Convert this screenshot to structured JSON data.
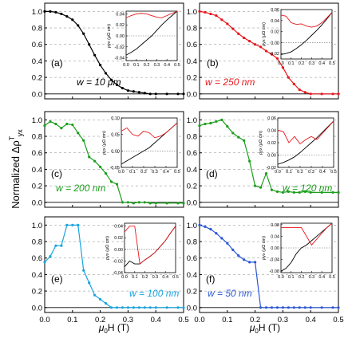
{
  "figure": {
    "y_axis_label": "Normalized Δρ",
    "y_axis_sup": "T",
    "y_axis_sub": "yx",
    "x_axis_label": "μ0H (T)",
    "x_axis_main": "μ",
    "x_axis_sub": "0",
    "x_axis_rest": "H (T)"
  },
  "chart_data": [
    {
      "type": "line",
      "panel": "(a)",
      "legend": "w = 10 μm",
      "color": "#000000",
      "xlim": [
        0,
        0.5
      ],
      "ylim": [
        -0.06,
        1.1
      ],
      "xticks": [
        "0.0",
        "0.1",
        "0.2",
        "0.3",
        "0.4",
        "0.5"
      ],
      "yticks": [
        "0.0",
        "0.2",
        "0.4",
        "0.6",
        "0.8",
        "1.0"
      ],
      "x": [
        0,
        0.02,
        0.04,
        0.06,
        0.08,
        0.1,
        0.12,
        0.14,
        0.16,
        0.18,
        0.2,
        0.22,
        0.24,
        0.26,
        0.28,
        0.3,
        0.32,
        0.34,
        0.36,
        0.38,
        0.4,
        0.44,
        0.48,
        0.5
      ],
      "y": [
        1.0,
        1.0,
        0.99,
        0.97,
        0.94,
        0.9,
        0.83,
        0.73,
        0.6,
        0.47,
        0.35,
        0.25,
        0.17,
        0.11,
        0.07,
        0.04,
        0.03,
        0.02,
        0.01,
        0.0,
        0.0,
        0.0,
        0.0,
        0.0
      ],
      "inset": {
        "ylabel": "ρyx (μΩ cm)",
        "ylim": [
          -0.045,
          0.045
        ],
        "yticks": [
          "-0.04",
          "-0.02",
          "0.00",
          "0.02",
          "0.04"
        ],
        "xticks": [
          "0.0",
          "0.1",
          "0.2",
          "0.3",
          "0.4",
          "0.5"
        ],
        "red": {
          "x": [
            0,
            0.05,
            0.1,
            0.15,
            0.2,
            0.25,
            0.3,
            0.35,
            0.4,
            0.45,
            0.5
          ],
          "y": [
            0.033,
            0.037,
            0.04,
            0.041,
            0.04,
            0.037,
            0.034,
            0.033,
            0.037,
            0.041,
            0.045
          ]
        },
        "black": {
          "x": [
            0,
            0.05,
            0.1,
            0.15,
            0.2,
            0.25,
            0.3,
            0.35,
            0.4,
            0.45,
            0.5
          ],
          "y": [
            -0.035,
            -0.03,
            -0.024,
            -0.016,
            -0.008,
            0.0,
            0.01,
            0.02,
            0.029,
            0.037,
            0.045
          ]
        }
      }
    },
    {
      "type": "line",
      "panel": "(b)",
      "legend": "w = 250 nm",
      "color": "#e8161b",
      "xlim": [
        0,
        0.5
      ],
      "ylim": [
        -0.06,
        1.1
      ],
      "xticks": [
        "0.0",
        "0.1",
        "0.2",
        "0.3",
        "0.4",
        "0.5"
      ],
      "yticks": [
        "0.0",
        "0.2",
        "0.4",
        "0.6",
        "0.8",
        "1.0"
      ],
      "x": [
        0,
        0.02,
        0.04,
        0.06,
        0.08,
        0.1,
        0.12,
        0.14,
        0.16,
        0.18,
        0.2,
        0.22,
        0.24,
        0.26,
        0.28,
        0.3,
        0.32,
        0.34,
        0.36,
        0.38,
        0.4,
        0.44,
        0.48,
        0.5
      ],
      "y": [
        1.0,
        0.99,
        0.97,
        0.95,
        0.9,
        0.85,
        0.79,
        0.73,
        0.68,
        0.64,
        0.6,
        0.57,
        0.52,
        0.48,
        0.43,
        0.32,
        0.2,
        0.12,
        0.05,
        0.02,
        0.0,
        0.0,
        0.0,
        0.0
      ],
      "inset": {
        "ylabel": "ρyx (μΩ cm)",
        "ylim": [
          -0.03,
          0.06
        ],
        "yticks": [
          "-0.02",
          "0.00",
          "0.02",
          "0.04",
          "0.06"
        ],
        "xticks": [
          "0.0",
          "0.1",
          "0.2",
          "0.3",
          "0.4",
          "0.5"
        ],
        "red": {
          "x": [
            0,
            0.05,
            0.1,
            0.15,
            0.2,
            0.25,
            0.3,
            0.35,
            0.4,
            0.45,
            0.5
          ],
          "y": [
            0.05,
            0.048,
            0.036,
            0.033,
            0.034,
            0.03,
            0.028,
            0.03,
            0.036,
            0.045,
            0.055
          ]
        },
        "black": {
          "x": [
            0,
            0.05,
            0.1,
            0.15,
            0.2,
            0.25,
            0.3,
            0.35,
            0.4,
            0.45,
            0.5
          ],
          "y": [
            -0.022,
            -0.02,
            -0.017,
            -0.011,
            -0.004,
            0.004,
            0.013,
            0.022,
            0.032,
            0.043,
            0.055
          ]
        }
      }
    },
    {
      "type": "line",
      "panel": "(c)",
      "legend": "w = 200 nm",
      "color": "#1b9e1b",
      "xlim": [
        0,
        0.5
      ],
      "ylim": [
        -0.06,
        1.1
      ],
      "xticks": [
        "0.0",
        "0.1",
        "0.2",
        "0.3",
        "0.4",
        "0.5"
      ],
      "yticks": [
        "0.0",
        "0.2",
        "0.4",
        "0.6",
        "0.8",
        "1.0"
      ],
      "x": [
        0,
        0.02,
        0.04,
        0.06,
        0.08,
        0.1,
        0.12,
        0.14,
        0.16,
        0.18,
        0.2,
        0.22,
        0.24,
        0.26,
        0.28,
        0.3,
        0.32,
        0.34,
        0.36,
        0.38,
        0.4,
        0.44,
        0.48,
        0.5
      ],
      "y": [
        0.93,
        0.98,
        0.95,
        0.9,
        0.95,
        0.94,
        0.84,
        0.75,
        0.55,
        0.5,
        0.43,
        0.35,
        0.25,
        0.22,
        0.0,
        0.0,
        -0.01,
        0.0,
        0.0,
        -0.01,
        -0.01,
        -0.01,
        -0.01,
        -0.01
      ],
      "inset": {
        "ylabel": "ρyx (μΩ cm)",
        "ylim": [
          -0.05,
          0.1
        ],
        "yticks": [
          "-0.05",
          "0.00",
          "0.05",
          "0.10"
        ],
        "xticks": [
          "0.0",
          "0.1",
          "0.2",
          "0.3",
          "0.4",
          "0.5"
        ],
        "red": {
          "x": [
            0,
            0.05,
            0.1,
            0.15,
            0.2,
            0.25,
            0.3,
            0.35,
            0.4,
            0.45,
            0.5
          ],
          "y": [
            0.06,
            0.07,
            0.05,
            0.045,
            0.06,
            0.055,
            0.04,
            0.045,
            0.055,
            0.07,
            0.085
          ]
        },
        "black": {
          "x": [
            0,
            0.05,
            0.1,
            0.15,
            0.2,
            0.25,
            0.3,
            0.35,
            0.4,
            0.45,
            0.5
          ],
          "y": [
            -0.04,
            -0.03,
            -0.02,
            -0.01,
            0.0,
            0.01,
            0.025,
            0.04,
            0.055,
            0.07,
            0.085
          ]
        }
      }
    },
    {
      "type": "line",
      "panel": "(d)",
      "legend": "w = 120 nm",
      "color": "#1b9e1b",
      "xlim": [
        0,
        0.5
      ],
      "ylim": [
        -0.06,
        1.1
      ],
      "xticks": [
        "0.0",
        "0.1",
        "0.2",
        "0.3",
        "0.4",
        "0.5"
      ],
      "yticks": [
        "0.0",
        "0.2",
        "0.4",
        "0.6",
        "0.8",
        "1.0"
      ],
      "x": [
        0,
        0.02,
        0.04,
        0.06,
        0.08,
        0.1,
        0.12,
        0.14,
        0.16,
        0.18,
        0.2,
        0.22,
        0.24,
        0.26,
        0.28,
        0.3,
        0.32,
        0.34,
        0.36,
        0.38,
        0.4,
        0.44,
        0.48,
        0.5
      ],
      "y": [
        0.93,
        0.95,
        0.96,
        0.98,
        1.0,
        0.92,
        0.84,
        0.79,
        0.75,
        0.5,
        0.2,
        0.18,
        0.35,
        0.15,
        0.13,
        0.12,
        0.13,
        0.12,
        0.12,
        0.13,
        0.12,
        0.12,
        0.12,
        0.12
      ],
      "inset": {
        "ylabel": "ρyx (μΩ cm)",
        "ylim": [
          -0.02,
          0.06
        ],
        "yticks": [
          "-0.02",
          "0.00",
          "0.02",
          "0.04",
          "0.06"
        ],
        "xticks": [
          "0.0",
          "0.1",
          "0.2",
          "0.3",
          "0.4",
          "0.5"
        ],
        "red": {
          "x": [
            0,
            0.05,
            0.1,
            0.15,
            0.2,
            0.25,
            0.3,
            0.35,
            0.4,
            0.45,
            0.5
          ],
          "y": [
            0.04,
            0.038,
            0.02,
            0.03,
            0.018,
            0.025,
            0.03,
            0.025,
            0.035,
            0.045,
            0.055
          ]
        },
        "black": {
          "x": [
            0,
            0.05,
            0.1,
            0.15,
            0.2,
            0.25,
            0.3,
            0.35,
            0.4,
            0.45,
            0.5
          ],
          "y": [
            -0.015,
            -0.012,
            -0.008,
            -0.003,
            0.004,
            0.012,
            0.02,
            0.028,
            0.037,
            0.046,
            0.055
          ]
        }
      }
    },
    {
      "type": "line",
      "panel": "(e)",
      "legend": "w = 100 nm",
      "color": "#17a5e0",
      "xlim": [
        0,
        0.5
      ],
      "ylim": [
        -0.06,
        1.1
      ],
      "xticks": [
        "0.0",
        "0.1",
        "0.2",
        "0.3",
        "0.4",
        "0.5"
      ],
      "yticks": [
        "0.0",
        "0.2",
        "0.4",
        "0.6",
        "0.8",
        "1.0"
      ],
      "x": [
        0,
        0.02,
        0.04,
        0.06,
        0.08,
        0.1,
        0.12,
        0.14,
        0.16,
        0.18,
        0.2,
        0.22,
        0.24,
        0.26,
        0.28,
        0.3,
        0.32,
        0.34,
        0.36,
        0.38,
        0.4,
        0.44,
        0.48,
        0.5
      ],
      "y": [
        0.55,
        0.62,
        0.75,
        0.75,
        1.0,
        1.0,
        1.0,
        0.45,
        0.3,
        0.15,
        0.1,
        0.05,
        0.0,
        0.0,
        0.0,
        0.0,
        0.0,
        0.0,
        0.0,
        0.0,
        0.0,
        0.0,
        0.0,
        0.0
      ],
      "inset": {
        "ylabel": "ρyx (μΩ cm)",
        "ylim": [
          -0.04,
          0.045
        ],
        "yticks": [
          "-0.04",
          "-0.02",
          "0.00",
          "0.02",
          "0.04"
        ],
        "xticks": [
          "0.0",
          "0.1",
          "0.2",
          "0.3",
          "0.4",
          "0.5"
        ],
        "red": {
          "x": [
            0,
            0.05,
            0.1,
            0.15,
            0.2,
            0.25,
            0.3,
            0.35,
            0.4,
            0.45,
            0.5
          ],
          "y": [
            0.03,
            0.04,
            0.04,
            -0.025,
            -0.018,
            -0.012,
            -0.005,
            0.005,
            0.015,
            0.028,
            0.04
          ]
        },
        "black": {
          "x": [
            0,
            0.05,
            0.1,
            0.15,
            0.2,
            0.25,
            0.3,
            0.35,
            0.4,
            0.45,
            0.5
          ],
          "y": [
            -0.03,
            -0.02,
            -0.025,
            -0.025,
            -0.018,
            -0.012,
            -0.005,
            0.005,
            0.015,
            0.028,
            0.04
          ]
        }
      }
    },
    {
      "type": "line",
      "panel": "(f)",
      "legend": "w = 50 nm",
      "color": "#2a57d6",
      "xlim": [
        0,
        0.5
      ],
      "ylim": [
        -0.06,
        1.1
      ],
      "xticks": [
        "0.0",
        "0.1",
        "0.2",
        "0.3",
        "0.4",
        "0.5"
      ],
      "yticks": [
        "0.0",
        "0.2",
        "0.4",
        "0.6",
        "0.8",
        "1.0"
      ],
      "x": [
        0,
        0.02,
        0.04,
        0.06,
        0.08,
        0.1,
        0.12,
        0.14,
        0.16,
        0.18,
        0.2,
        0.22,
        0.24,
        0.26,
        0.28,
        0.3,
        0.32,
        0.34,
        0.36,
        0.38,
        0.4,
        0.44,
        0.48,
        0.5
      ],
      "y": [
        1.0,
        0.98,
        0.95,
        0.9,
        0.84,
        0.78,
        0.7,
        0.63,
        0.58,
        0.55,
        0.55,
        0.0,
        0.0,
        0.0,
        0.0,
        0.0,
        0.0,
        0.0,
        0.0,
        0.0,
        0.0,
        0.0,
        0.0,
        0.0
      ],
      "inset": {
        "ylabel": "ρyx (μΩ cm)",
        "ylim": [
          -0.085,
          0.085
        ],
        "yticks": [
          "-0.08",
          "-0.04",
          "0.00",
          "0.04",
          "0.08"
        ],
        "xticks": [
          "0.0",
          "0.1",
          "0.2",
          "0.3",
          "0.4",
          "0.5"
        ],
        "red": {
          "x": [
            0,
            0.05,
            0.1,
            0.15,
            0.2,
            0.25,
            0.3,
            0.35,
            0.4,
            0.45,
            0.5
          ],
          "y": [
            0.07,
            0.07,
            0.07,
            0.07,
            0.07,
            0.04,
            0.01,
            0.03,
            0.05,
            0.07,
            0.085
          ]
        },
        "black": {
          "x": [
            0,
            0.05,
            0.1,
            0.15,
            0.2,
            0.25,
            0.3,
            0.35,
            0.4,
            0.45,
            0.5
          ],
          "y": [
            -0.08,
            -0.07,
            -0.05,
            -0.02,
            0.0,
            0.01,
            0.025,
            0.04,
            0.055,
            0.07,
            0.085
          ]
        }
      }
    }
  ]
}
